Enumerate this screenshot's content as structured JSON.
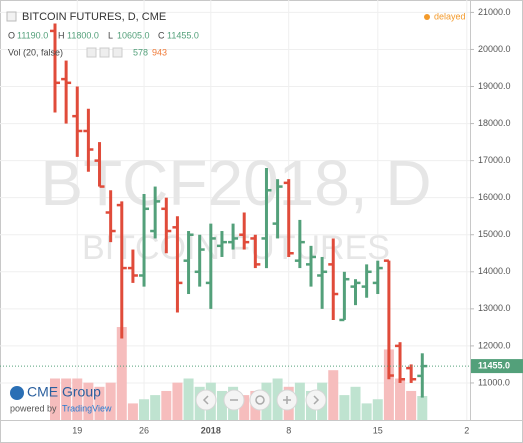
{
  "header": {
    "title": "BITCOIN FUTURES, D, CME",
    "status": "delayed",
    "ohlc": [
      {
        "key": "O",
        "value": "11190.0"
      },
      {
        "key": "H",
        "value": "11800.0"
      },
      {
        "key": "L",
        "value": "10605.0"
      },
      {
        "key": "C",
        "value": "11455.0"
      }
    ],
    "volume_label": "Vol (20, false)",
    "volume_value": "578",
    "volume_ma": "943"
  },
  "watermark": {
    "symbol": "BTCF2018, D",
    "name": "BITCOIN FUTURES"
  },
  "branding": {
    "logo": "CME Group",
    "powered_by": "powered by",
    "platform": "TradingView"
  },
  "chart_data": {
    "type": "ohlc",
    "categories": [
      null,
      null,
      "19",
      null,
      null,
      null,
      null,
      null,
      "26",
      null,
      null,
      null,
      null,
      null,
      "2018",
      null,
      null,
      null,
      null,
      null,
      null,
      "8",
      null,
      null,
      null,
      null,
      null,
      null,
      null,
      "15",
      null,
      null,
      null,
      null,
      null,
      null,
      null,
      "2"
    ],
    "open": [
      20500,
      19200,
      18200,
      17800,
      17000,
      15600,
      15800,
      14100,
      13900,
      15100,
      15700,
      15200,
      14300,
      14000,
      13700,
      14700,
      14800,
      15000,
      14900,
      14900,
      15300,
      16400,
      14300,
      14200,
      13900,
      14200,
      12700,
      13600,
      13600,
      13700,
      14300,
      12000,
      11400,
      11190,
      null,
      null,
      null,
      null
    ],
    "high": [
      20700,
      19700,
      19000,
      18400,
      17500,
      16200,
      15900,
      14600,
      16100,
      16300,
      16000,
      15500,
      15100,
      15000,
      15300,
      15100,
      15300,
      15600,
      15000,
      16800,
      16500,
      16500,
      15400,
      14700,
      14400,
      14900,
      14000,
      13800,
      14200,
      14300,
      14300,
      12100,
      11500,
      11800,
      null,
      null,
      null,
      null
    ],
    "low": [
      18300,
      18000,
      17100,
      16700,
      16300,
      14800,
      12200,
      13700,
      13600,
      14900,
      14500,
      12900,
      13400,
      13600,
      13000,
      14400,
      14600,
      14600,
      14100,
      14100,
      14900,
      14400,
      14100,
      13600,
      13000,
      12700,
      12700,
      13100,
      13300,
      13400,
      11100,
      11000,
      11000,
      10605,
      null,
      null,
      null,
      null
    ],
    "close": [
      19100,
      19100,
      17800,
      17300,
      16300,
      15100,
      14100,
      13900,
      15700,
      15900,
      15100,
      13700,
      15000,
      14600,
      14900,
      14800,
      14900,
      14800,
      14200,
      16200,
      16300,
      14500,
      14800,
      14400,
      14000,
      13400,
      13800,
      13700,
      14000,
      14100,
      11200,
      11100,
      11100,
      11455,
      null,
      null,
      null,
      null
    ],
    "volume": [
      1000,
      1000,
      1000,
      900,
      800,
      900,
      2240,
      400,
      500,
      600,
      700,
      900,
      1000,
      800,
      900,
      700,
      800,
      600,
      700,
      900,
      1000,
      800,
      900,
      700,
      900,
      1200,
      600,
      800,
      400,
      500,
      1700,
      1000,
      700,
      578,
      null,
      null,
      null,
      null
    ],
    "volume_lim": [
      0,
      10000
    ],
    "colors": {
      "up": "#53a07a",
      "down": "#e04b3a",
      "up_volume": "#bfe3d0",
      "down_volume": "#f6bdbd"
    },
    "ylim": [
      10000,
      21200
    ],
    "yticks": [
      {
        "value": 11000,
        "label": "11000.0"
      },
      {
        "value": 12000,
        "label": "12000.0"
      },
      {
        "value": 13000,
        "label": "13000.0"
      },
      {
        "value": 14000,
        "label": "14000.0"
      },
      {
        "value": 15000,
        "label": "15000.0"
      },
      {
        "value": 16000,
        "label": "16000.0"
      },
      {
        "value": 17000,
        "label": "17000.0"
      },
      {
        "value": 18000,
        "label": "18000.0"
      },
      {
        "value": 19000,
        "label": "19000.0"
      },
      {
        "value": 20000,
        "label": "20000.0"
      },
      {
        "value": 21000,
        "label": "21000.0"
      }
    ],
    "last_price_label": "11455.0",
    "grid": true
  }
}
